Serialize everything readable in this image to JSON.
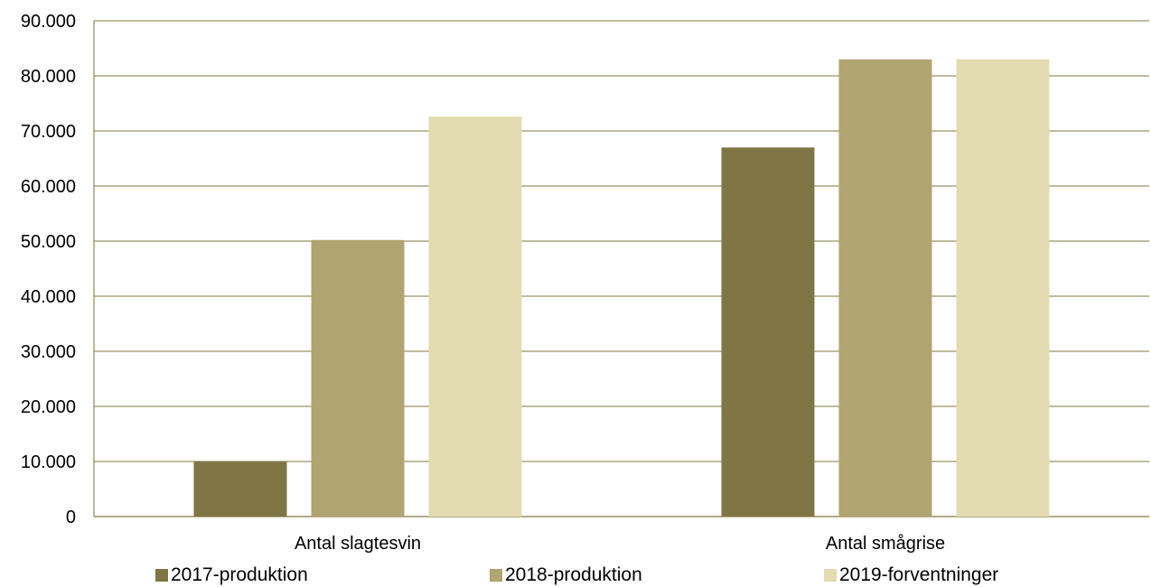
{
  "chart_data": {
    "type": "bar",
    "categories": [
      "Antal slagtesvin",
      "Antal smågrise"
    ],
    "series": [
      {
        "name": "2017-produktion",
        "values": [
          10000,
          67000
        ],
        "color": "#807645"
      },
      {
        "name": "2018-produktion",
        "values": [
          50200,
          83000
        ],
        "color": "#b0a472"
      },
      {
        "name": "2019-forventninger",
        "values": [
          72600,
          83000
        ],
        "color": "#e3dbb2"
      }
    ],
    "ylim": [
      0,
      90000
    ],
    "y_ticks": [
      "0",
      "10.000",
      "20.000",
      "30.000",
      "40.000",
      "50.000",
      "60.000",
      "70.000",
      "80.000",
      "90.000"
    ],
    "grid": true,
    "grid_color": "#9a9066",
    "legend_position": "bottom"
  }
}
